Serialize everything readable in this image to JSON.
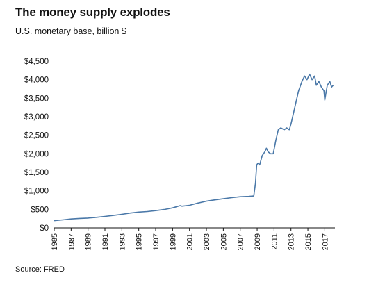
{
  "header": {
    "title": "The money supply explodes",
    "subtitle": "U.S. monetary base, billion $"
  },
  "footer": {
    "source": "Source: FRED"
  },
  "chart_data": {
    "type": "line",
    "title": "The money supply explodes",
    "subtitle": "U.S. monetary base, billion $",
    "xlabel": "",
    "ylabel": "",
    "xlim": [
      1985,
      2018.2
    ],
    "ylim": [
      0,
      4500
    ],
    "yticks": [
      0,
      500,
      1000,
      1500,
      2000,
      2500,
      3000,
      3500,
      4000,
      4500
    ],
    "ytick_labels": [
      "$0",
      "$500",
      "$1,000",
      "$1,500",
      "$2,000",
      "$2,500",
      "$3,000",
      "$3,500",
      "$4,000",
      "$4,500"
    ],
    "xticks": [
      1985,
      1987,
      1989,
      1991,
      1993,
      1995,
      1997,
      1999,
      2001,
      2003,
      2005,
      2007,
      2009,
      2011,
      2013,
      2015,
      2017
    ],
    "xtick_labels": [
      "1985",
      "1987",
      "1989",
      "1991",
      "1993",
      "1995",
      "1997",
      "1999",
      "2001",
      "2003",
      "2005",
      "2007",
      "2009",
      "2011",
      "2013",
      "2015",
      "2017"
    ],
    "grid": false,
    "line_color": "#4a78a8",
    "series": [
      {
        "values": [
          [
            1985.0,
            195
          ],
          [
            1986.0,
            215
          ],
          [
            1987.0,
            240
          ],
          [
            1988.0,
            255
          ],
          [
            1989.0,
            265
          ],
          [
            1990.0,
            285
          ],
          [
            1991.0,
            310
          ],
          [
            1992.0,
            335
          ],
          [
            1993.0,
            365
          ],
          [
            1994.0,
            400
          ],
          [
            1995.0,
            425
          ],
          [
            1996.0,
            440
          ],
          [
            1997.0,
            465
          ],
          [
            1998.0,
            495
          ],
          [
            1999.0,
            540
          ],
          [
            1999.9,
            600
          ],
          [
            2000.1,
            585
          ],
          [
            2001.0,
            610
          ],
          [
            2002.0,
            670
          ],
          [
            2003.0,
            720
          ],
          [
            2004.0,
            755
          ],
          [
            2005.0,
            785
          ],
          [
            2006.0,
            815
          ],
          [
            2007.0,
            840
          ],
          [
            2008.0,
            850
          ],
          [
            2008.6,
            860
          ],
          [
            2008.8,
            1200
          ],
          [
            2008.95,
            1700
          ],
          [
            2009.1,
            1750
          ],
          [
            2009.3,
            1700
          ],
          [
            2009.6,
            1950
          ],
          [
            2009.9,
            2050
          ],
          [
            2010.1,
            2150
          ],
          [
            2010.3,
            2050
          ],
          [
            2010.6,
            2000
          ],
          [
            2010.9,
            2000
          ],
          [
            2011.2,
            2350
          ],
          [
            2011.5,
            2650
          ],
          [
            2011.8,
            2700
          ],
          [
            2012.2,
            2650
          ],
          [
            2012.5,
            2700
          ],
          [
            2012.8,
            2650
          ],
          [
            2013.0,
            2800
          ],
          [
            2013.3,
            3100
          ],
          [
            2013.6,
            3400
          ],
          [
            2013.9,
            3700
          ],
          [
            2014.3,
            3950
          ],
          [
            2014.6,
            4100
          ],
          [
            2014.9,
            4000
          ],
          [
            2015.2,
            4150
          ],
          [
            2015.5,
            4000
          ],
          [
            2015.8,
            4100
          ],
          [
            2016.0,
            3850
          ],
          [
            2016.3,
            3950
          ],
          [
            2016.6,
            3800
          ],
          [
            2016.9,
            3700
          ],
          [
            2017.0,
            3450
          ],
          [
            2017.3,
            3850
          ],
          [
            2017.6,
            3950
          ],
          [
            2017.8,
            3800
          ],
          [
            2018.0,
            3850
          ]
        ]
      }
    ]
  }
}
